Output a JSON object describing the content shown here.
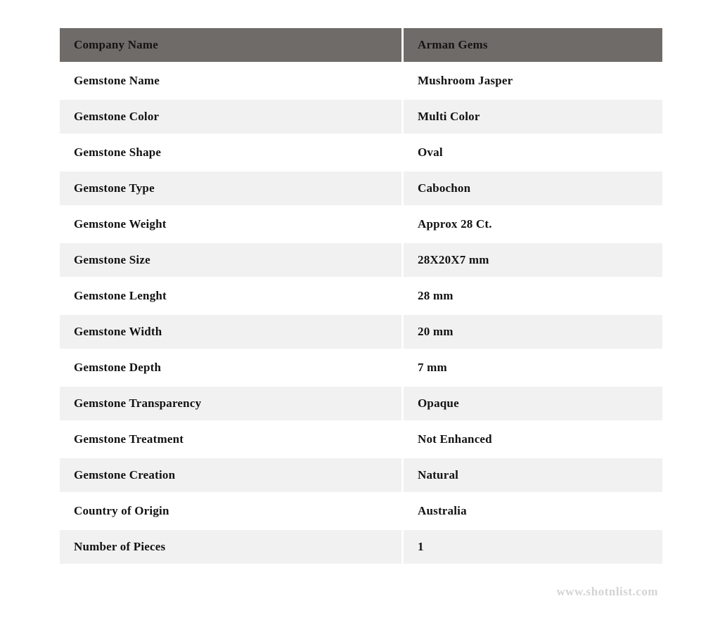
{
  "colors": {
    "header_bg": "#6f6b69",
    "row_alt_bg": "#f1f1f1",
    "row_bg": "#ffffff",
    "text": "#121212",
    "watermark": "#d4d4d4"
  },
  "table": {
    "header": {
      "label": "Company Name",
      "value": "Arman Gems"
    },
    "rows": [
      {
        "label": "Gemstone Name",
        "value": "Mushroom Jasper"
      },
      {
        "label": "Gemstone Color",
        "value": "Multi Color"
      },
      {
        "label": "Gemstone Shape",
        "value": "Oval"
      },
      {
        "label": "Gemstone Type",
        "value": "Cabochon"
      },
      {
        "label": "Gemstone Weight",
        "value": "Approx 28 Ct."
      },
      {
        "label": "Gemstone Size",
        "value": "28X20X7 mm"
      },
      {
        "label": "Gemstone Lenght",
        "value": "28 mm"
      },
      {
        "label": "Gemstone Width",
        "value": "20 mm"
      },
      {
        "label": "Gemstone Depth",
        "value": "7 mm"
      },
      {
        "label": "Gemstone Transparency",
        "value": "Opaque"
      },
      {
        "label": "Gemstone Treatment",
        "value": "Not Enhanced"
      },
      {
        "label": "Gemstone Creation",
        "value": "Natural"
      },
      {
        "label": "Country of Origin",
        "value": "Australia"
      },
      {
        "label": "Number of Pieces",
        "value": "1"
      }
    ]
  },
  "footer": {
    "watermark": "www.shotnlist.com"
  }
}
